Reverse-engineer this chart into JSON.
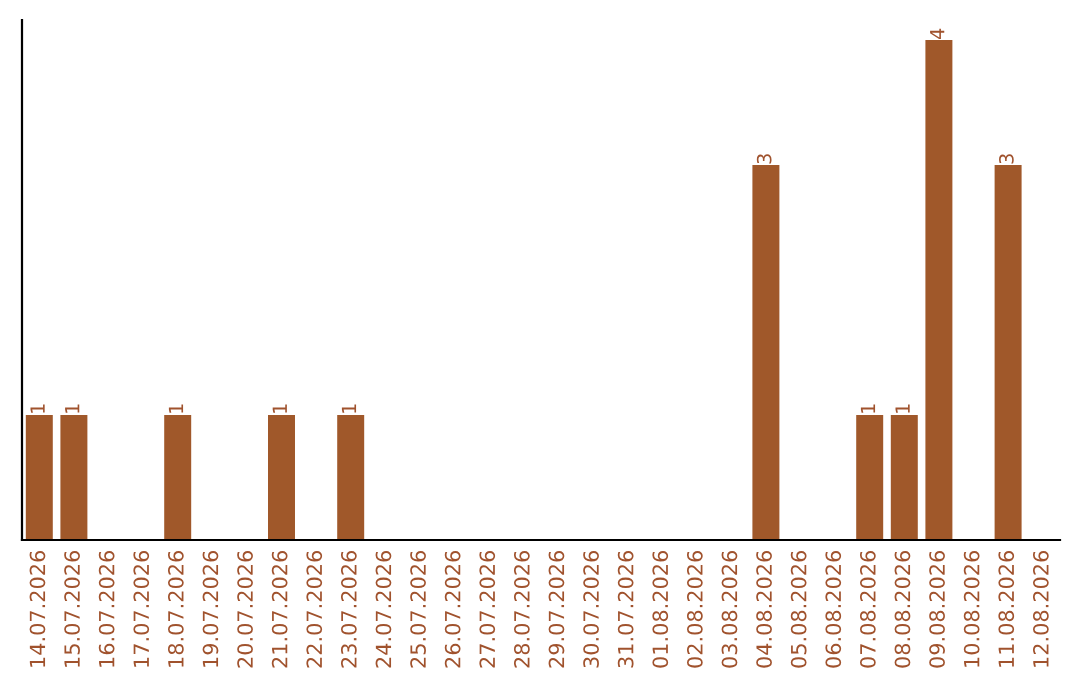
{
  "chart_data": {
    "type": "bar",
    "categories": [
      "14.07.2026",
      "15.07.2026",
      "16.07.2026",
      "17.07.2026",
      "18.07.2026",
      "19.07.2026",
      "20.07.2026",
      "21.07.2026",
      "22.07.2026",
      "23.07.2026",
      "24.07.2026",
      "25.07.2026",
      "26.07.2026",
      "27.07.2026",
      "28.07.2026",
      "29.07.2026",
      "30.07.2026",
      "31.07.2026",
      "01.08.2026",
      "02.08.2026",
      "03.08.2026",
      "04.08.2026",
      "05.08.2026",
      "06.08.2026",
      "07.08.2026",
      "08.08.2026",
      "09.08.2026",
      "10.08.2026",
      "11.08.2026",
      "12.08.2026"
    ],
    "values": [
      1,
      1,
      0,
      0,
      1,
      0,
      0,
      1,
      0,
      1,
      0,
      0,
      0,
      0,
      0,
      0,
      0,
      0,
      0,
      0,
      0,
      3,
      0,
      0,
      1,
      1,
      4,
      0,
      3,
      0
    ],
    "value_labels": [
      "1",
      "1",
      null,
      null,
      "1",
      null,
      null,
      "1",
      null,
      "1",
      null,
      null,
      null,
      null,
      null,
      null,
      null,
      null,
      null,
      null,
      null,
      "3",
      null,
      null,
      "1",
      "1",
      "4",
      null,
      "3",
      null
    ],
    "color": "#a0582a",
    "tick_labels": "x",
    "grid": false,
    "legend": false
  }
}
